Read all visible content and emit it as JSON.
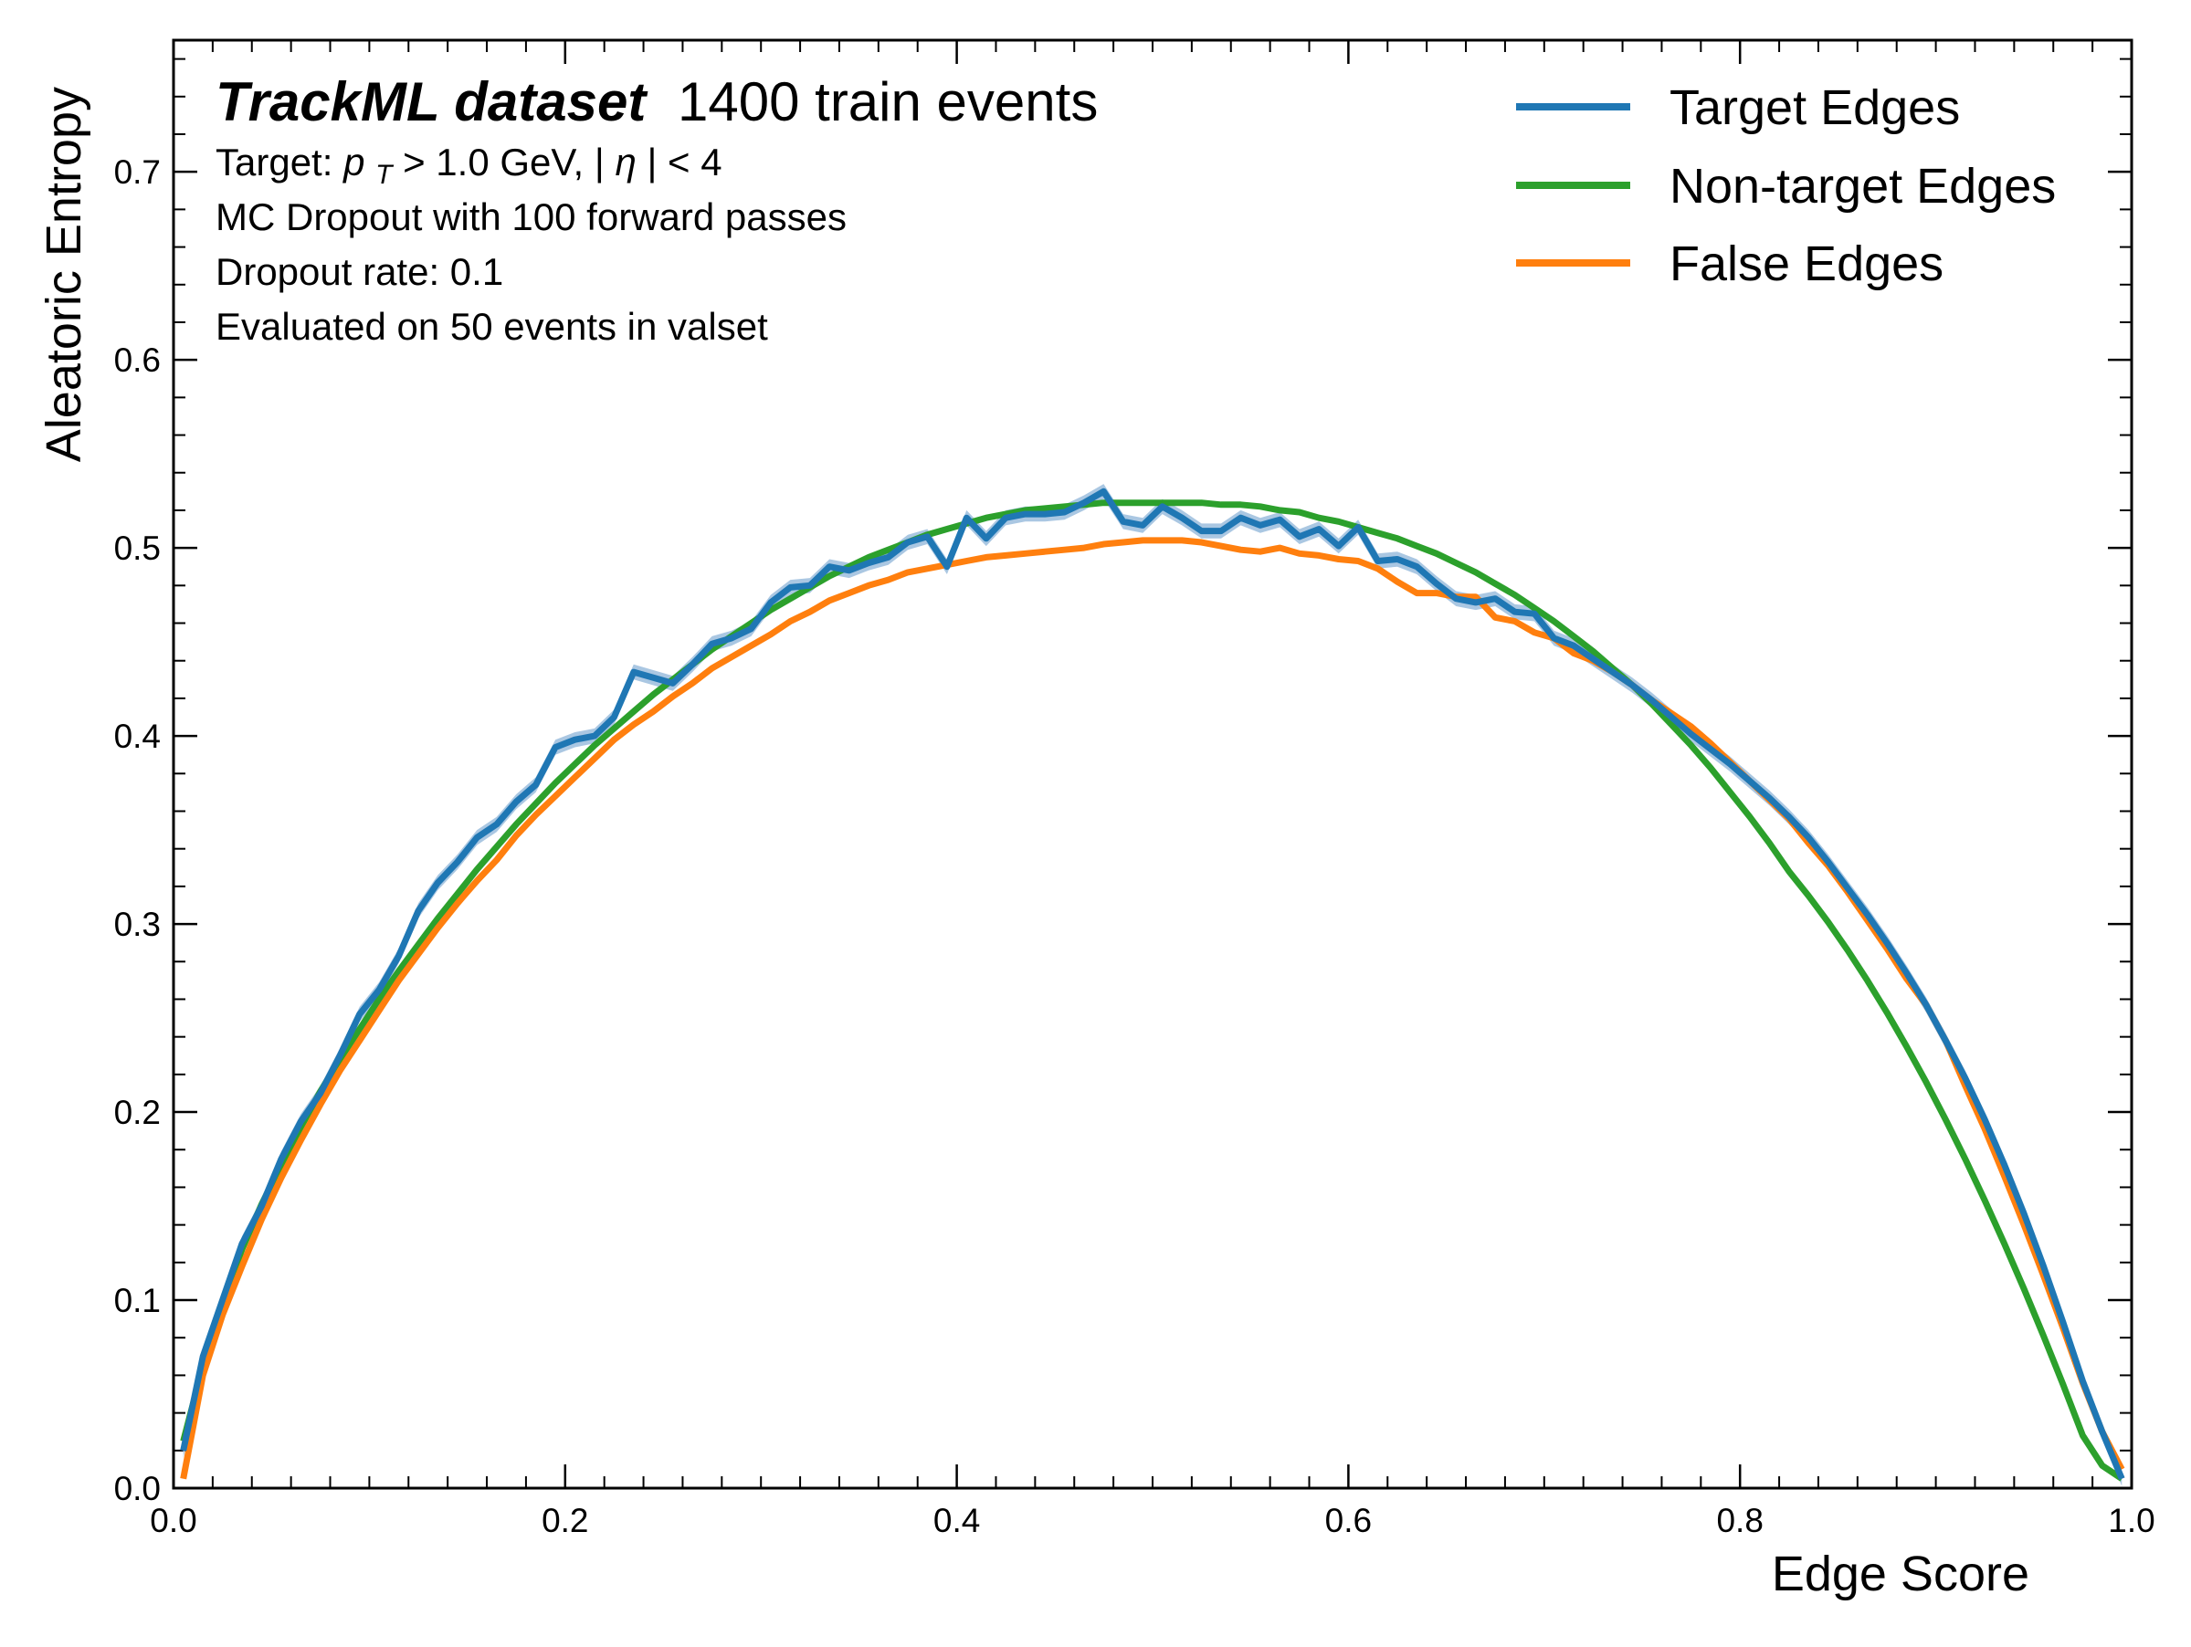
{
  "chart_data": {
    "type": "line",
    "title": "",
    "xlabel": "Edge Score",
    "ylabel": "Aleatoric Entropy",
    "xlim": [
      0.0,
      1.0
    ],
    "ylim": [
      0.0,
      0.77
    ],
    "x_ticks": [
      0.0,
      0.2,
      0.4,
      0.6,
      0.8,
      1.0
    ],
    "x_tick_labels": [
      "0.0",
      "0.2",
      "0.4",
      "0.6",
      "0.8",
      "1.0"
    ],
    "y_ticks": [
      0.0,
      0.1,
      0.2,
      0.3,
      0.4,
      0.5,
      0.6,
      0.7
    ],
    "y_tick_labels": [
      "0.0",
      "0.1",
      "0.2",
      "0.3",
      "0.4",
      "0.5",
      "0.6",
      "0.7"
    ],
    "grid": false,
    "legend_position": "top-right",
    "annotations": {
      "title_bold": "TrackML dataset",
      "title_rest": "1400 train events",
      "target_prefix": "Target: ",
      "target_p": "p",
      "target_sub": "T",
      "target_mid": " > 1.0 GeV, |",
      "target_eta": "η",
      "target_end": "| < 4",
      "line_mc": "MC Dropout with 100 forward passes",
      "line_rate": "Dropout rate: 0.1",
      "line_eval": "Evaluated on 50 events in valset"
    },
    "series": [
      {
        "name": "Target Edges",
        "color": "#1f77b4",
        "band_color": "#aac7e2",
        "band_halfwidth": 0.004,
        "x": [
          0.005,
          0.015,
          0.025,
          0.035,
          0.045,
          0.055,
          0.065,
          0.075,
          0.085,
          0.095,
          0.105,
          0.115,
          0.125,
          0.135,
          0.145,
          0.155,
          0.165,
          0.175,
          0.185,
          0.195,
          0.205,
          0.215,
          0.225,
          0.235,
          0.245,
          0.255,
          0.265,
          0.275,
          0.285,
          0.295,
          0.305,
          0.315,
          0.325,
          0.335,
          0.345,
          0.355,
          0.365,
          0.375,
          0.385,
          0.395,
          0.405,
          0.415,
          0.425,
          0.435,
          0.445,
          0.455,
          0.465,
          0.475,
          0.485,
          0.495,
          0.505,
          0.515,
          0.525,
          0.535,
          0.545,
          0.555,
          0.565,
          0.575,
          0.585,
          0.595,
          0.605,
          0.615,
          0.625,
          0.635,
          0.645,
          0.655,
          0.665,
          0.675,
          0.685,
          0.695,
          0.705,
          0.715,
          0.725,
          0.735,
          0.745,
          0.755,
          0.765,
          0.775,
          0.785,
          0.795,
          0.805,
          0.815,
          0.825,
          0.835,
          0.845,
          0.855,
          0.865,
          0.875,
          0.885,
          0.895,
          0.905,
          0.915,
          0.925,
          0.935,
          0.945,
          0.955,
          0.965,
          0.975,
          0.985,
          0.995
        ],
        "y": [
          0.02,
          0.07,
          0.1,
          0.13,
          0.15,
          0.175,
          0.195,
          0.21,
          0.23,
          0.252,
          0.265,
          0.283,
          0.307,
          0.322,
          0.333,
          0.346,
          0.353,
          0.365,
          0.374,
          0.394,
          0.398,
          0.4,
          0.41,
          0.434,
          0.431,
          0.428,
          0.438,
          0.449,
          0.452,
          0.457,
          0.471,
          0.479,
          0.48,
          0.49,
          0.488,
          0.492,
          0.495,
          0.503,
          0.506,
          0.49,
          0.516,
          0.505,
          0.516,
          0.518,
          0.518,
          0.519,
          0.524,
          0.53,
          0.514,
          0.512,
          0.522,
          0.516,
          0.509,
          0.509,
          0.516,
          0.512,
          0.515,
          0.506,
          0.51,
          0.501,
          0.511,
          0.493,
          0.494,
          0.49,
          0.481,
          0.473,
          0.471,
          0.473,
          0.466,
          0.465,
          0.452,
          0.448,
          0.441,
          0.434,
          0.427,
          0.419,
          0.41,
          0.401,
          0.393,
          0.385,
          0.376,
          0.367,
          0.357,
          0.346,
          0.333,
          0.319,
          0.305,
          0.29,
          0.274,
          0.257,
          0.238,
          0.218,
          0.196,
          0.172,
          0.146,
          0.118,
          0.088,
          0.057,
          0.03,
          0.005
        ]
      },
      {
        "name": "Non-target Edges",
        "color": "#2ca02c",
        "x": [
          0.005,
          0.015,
          0.025,
          0.035,
          0.045,
          0.055,
          0.065,
          0.075,
          0.085,
          0.095,
          0.105,
          0.115,
          0.125,
          0.135,
          0.145,
          0.155,
          0.165,
          0.175,
          0.185,
          0.195,
          0.205,
          0.215,
          0.225,
          0.235,
          0.245,
          0.255,
          0.265,
          0.275,
          0.285,
          0.295,
          0.305,
          0.315,
          0.325,
          0.335,
          0.345,
          0.355,
          0.365,
          0.375,
          0.385,
          0.395,
          0.405,
          0.415,
          0.425,
          0.435,
          0.445,
          0.455,
          0.465,
          0.475,
          0.485,
          0.495,
          0.505,
          0.515,
          0.525,
          0.535,
          0.545,
          0.555,
          0.565,
          0.575,
          0.585,
          0.595,
          0.605,
          0.615,
          0.625,
          0.635,
          0.645,
          0.655,
          0.665,
          0.675,
          0.685,
          0.695,
          0.705,
          0.715,
          0.725,
          0.735,
          0.745,
          0.755,
          0.765,
          0.775,
          0.785,
          0.795,
          0.805,
          0.815,
          0.825,
          0.835,
          0.845,
          0.855,
          0.865,
          0.875,
          0.885,
          0.895,
          0.905,
          0.915,
          0.925,
          0.935,
          0.945,
          0.955,
          0.965,
          0.975,
          0.985,
          0.995
        ],
        "y": [
          0.025,
          0.065,
          0.098,
          0.127,
          0.151,
          0.172,
          0.192,
          0.211,
          0.228,
          0.244,
          0.26,
          0.275,
          0.289,
          0.303,
          0.316,
          0.329,
          0.341,
          0.353,
          0.364,
          0.375,
          0.385,
          0.395,
          0.404,
          0.413,
          0.422,
          0.43,
          0.438,
          0.446,
          0.453,
          0.46,
          0.467,
          0.473,
          0.479,
          0.485,
          0.49,
          0.495,
          0.499,
          0.503,
          0.507,
          0.51,
          0.513,
          0.516,
          0.518,
          0.52,
          0.521,
          0.522,
          0.523,
          0.524,
          0.524,
          0.524,
          0.524,
          0.524,
          0.524,
          0.523,
          0.523,
          0.522,
          0.52,
          0.519,
          0.516,
          0.514,
          0.511,
          0.508,
          0.505,
          0.501,
          0.497,
          0.492,
          0.487,
          0.481,
          0.475,
          0.468,
          0.461,
          0.453,
          0.445,
          0.436,
          0.427,
          0.417,
          0.406,
          0.395,
          0.383,
          0.37,
          0.357,
          0.343,
          0.328,
          0.315,
          0.301,
          0.286,
          0.27,
          0.253,
          0.235,
          0.216,
          0.196,
          0.175,
          0.153,
          0.13,
          0.106,
          0.081,
          0.055,
          0.028,
          0.012,
          0.005
        ]
      },
      {
        "name": "False Edges",
        "color": "#ff7f0e",
        "x": [
          0.005,
          0.015,
          0.025,
          0.035,
          0.045,
          0.055,
          0.065,
          0.075,
          0.085,
          0.095,
          0.105,
          0.115,
          0.125,
          0.135,
          0.145,
          0.155,
          0.165,
          0.175,
          0.185,
          0.195,
          0.205,
          0.215,
          0.225,
          0.235,
          0.245,
          0.255,
          0.265,
          0.275,
          0.285,
          0.295,
          0.305,
          0.315,
          0.325,
          0.335,
          0.345,
          0.355,
          0.365,
          0.375,
          0.385,
          0.395,
          0.405,
          0.415,
          0.425,
          0.435,
          0.445,
          0.455,
          0.465,
          0.475,
          0.485,
          0.495,
          0.505,
          0.515,
          0.525,
          0.535,
          0.545,
          0.555,
          0.565,
          0.575,
          0.585,
          0.595,
          0.605,
          0.615,
          0.625,
          0.635,
          0.645,
          0.655,
          0.665,
          0.675,
          0.685,
          0.695,
          0.705,
          0.715,
          0.725,
          0.735,
          0.745,
          0.755,
          0.765,
          0.775,
          0.785,
          0.795,
          0.805,
          0.815,
          0.825,
          0.835,
          0.845,
          0.855,
          0.865,
          0.875,
          0.885,
          0.895,
          0.905,
          0.915,
          0.925,
          0.935,
          0.945,
          0.955,
          0.965,
          0.975,
          0.985,
          0.995
        ],
        "y": [
          0.005,
          0.06,
          0.092,
          0.118,
          0.143,
          0.165,
          0.185,
          0.204,
          0.222,
          0.238,
          0.254,
          0.27,
          0.284,
          0.298,
          0.311,
          0.323,
          0.334,
          0.347,
          0.358,
          0.368,
          0.378,
          0.388,
          0.398,
          0.406,
          0.413,
          0.421,
          0.428,
          0.436,
          0.442,
          0.448,
          0.454,
          0.461,
          0.466,
          0.472,
          0.476,
          0.48,
          0.483,
          0.487,
          0.489,
          0.491,
          0.493,
          0.495,
          0.496,
          0.497,
          0.498,
          0.499,
          0.5,
          0.502,
          0.503,
          0.504,
          0.504,
          0.504,
          0.503,
          0.501,
          0.499,
          0.498,
          0.5,
          0.497,
          0.496,
          0.494,
          0.493,
          0.489,
          0.482,
          0.476,
          0.476,
          0.474,
          0.474,
          0.463,
          0.461,
          0.455,
          0.452,
          0.444,
          0.44,
          0.434,
          0.427,
          0.419,
          0.412,
          0.405,
          0.396,
          0.386,
          0.376,
          0.366,
          0.356,
          0.343,
          0.331,
          0.317,
          0.302,
          0.287,
          0.271,
          0.257,
          0.238,
          0.214,
          0.191,
          0.166,
          0.14,
          0.113,
          0.085,
          0.056,
          0.03,
          0.01
        ]
      }
    ]
  }
}
